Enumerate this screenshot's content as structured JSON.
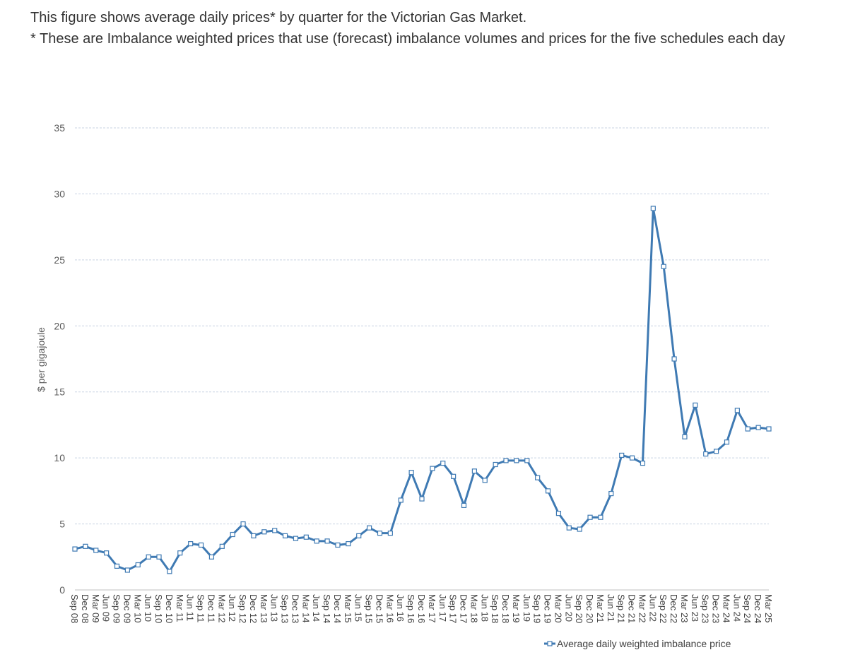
{
  "caption": {
    "line1": "This figure shows average daily prices* by quarter for the Victorian Gas Market.",
    "line2": "* These are Imbalance weighted prices that use (forecast) imbalance volumes and prices for the five schedules each day"
  },
  "chart_data": {
    "type": "line",
    "ylabel": "$ per gigajoule",
    "xlabel": "",
    "ylim": [
      0,
      35
    ],
    "yticks": [
      0,
      5,
      10,
      15,
      20,
      25,
      30,
      35
    ],
    "grid": "horizontal dashed",
    "legend_position": "bottom-right",
    "line_color": "#3f7ab3",
    "categories": [
      "Sep 08",
      "Dec 08",
      "Mar 09",
      "Jun 09",
      "Sep 09",
      "Dec 09",
      "Mar 10",
      "Jun 10",
      "Sep 10",
      "Dec 10",
      "Mar 11",
      "Jun 11",
      "Sep 11",
      "Dec 11",
      "Mar 12",
      "Jun 12",
      "Sep 12",
      "Dec 12",
      "Mar 13",
      "Jun 13",
      "Sep 13",
      "Dec 13",
      "Mar 14",
      "Jun 14",
      "Sep 14",
      "Dec 14",
      "Mar 15",
      "Jun 15",
      "Sep 15",
      "Dec 15",
      "Mar 16",
      "Jun 16",
      "Sep 16",
      "Dec 16",
      "Mar 17",
      "Jun 17",
      "Sep 17",
      "Dec 17",
      "Mar 18",
      "Jun 18",
      "Sep 18",
      "Dec 18",
      "Mar 19",
      "Jun 19",
      "Sep 19",
      "Dec 19",
      "Mar 20",
      "Jun 20",
      "Sep 20",
      "Dec 20",
      "Mar 21",
      "Jun 21",
      "Sep 21",
      "Dec 21",
      "Mar 22",
      "Jun 22",
      "Sep 22",
      "Dec 22",
      "Mar 23",
      "Jun 23",
      "Sep 23",
      "Dec 23",
      "Mar 24",
      "Jun 24",
      "Sep 24",
      "Dec 24",
      "Mar 25"
    ],
    "series": [
      {
        "name": "Average daily weighted imbalance price",
        "values": [
          3.1,
          3.3,
          3.0,
          2.8,
          1.8,
          1.5,
          1.9,
          2.5,
          2.5,
          1.4,
          2.8,
          3.5,
          3.4,
          2.5,
          3.3,
          4.2,
          5.0,
          4.1,
          4.4,
          4.5,
          4.1,
          3.9,
          4.0,
          3.7,
          3.7,
          3.4,
          3.5,
          4.1,
          4.7,
          4.3,
          4.3,
          6.8,
          8.9,
          6.9,
          9.2,
          9.6,
          8.6,
          6.4,
          9.0,
          8.3,
          9.5,
          9.8,
          9.8,
          9.8,
          8.5,
          7.5,
          5.8,
          4.7,
          4.6,
          5.5,
          5.5,
          7.3,
          10.2,
          10.0,
          9.6,
          28.9,
          24.5,
          17.5,
          11.6,
          14.0,
          10.3,
          10.5,
          11.2,
          13.6,
          12.2,
          12.3,
          12.2
        ]
      }
    ]
  }
}
